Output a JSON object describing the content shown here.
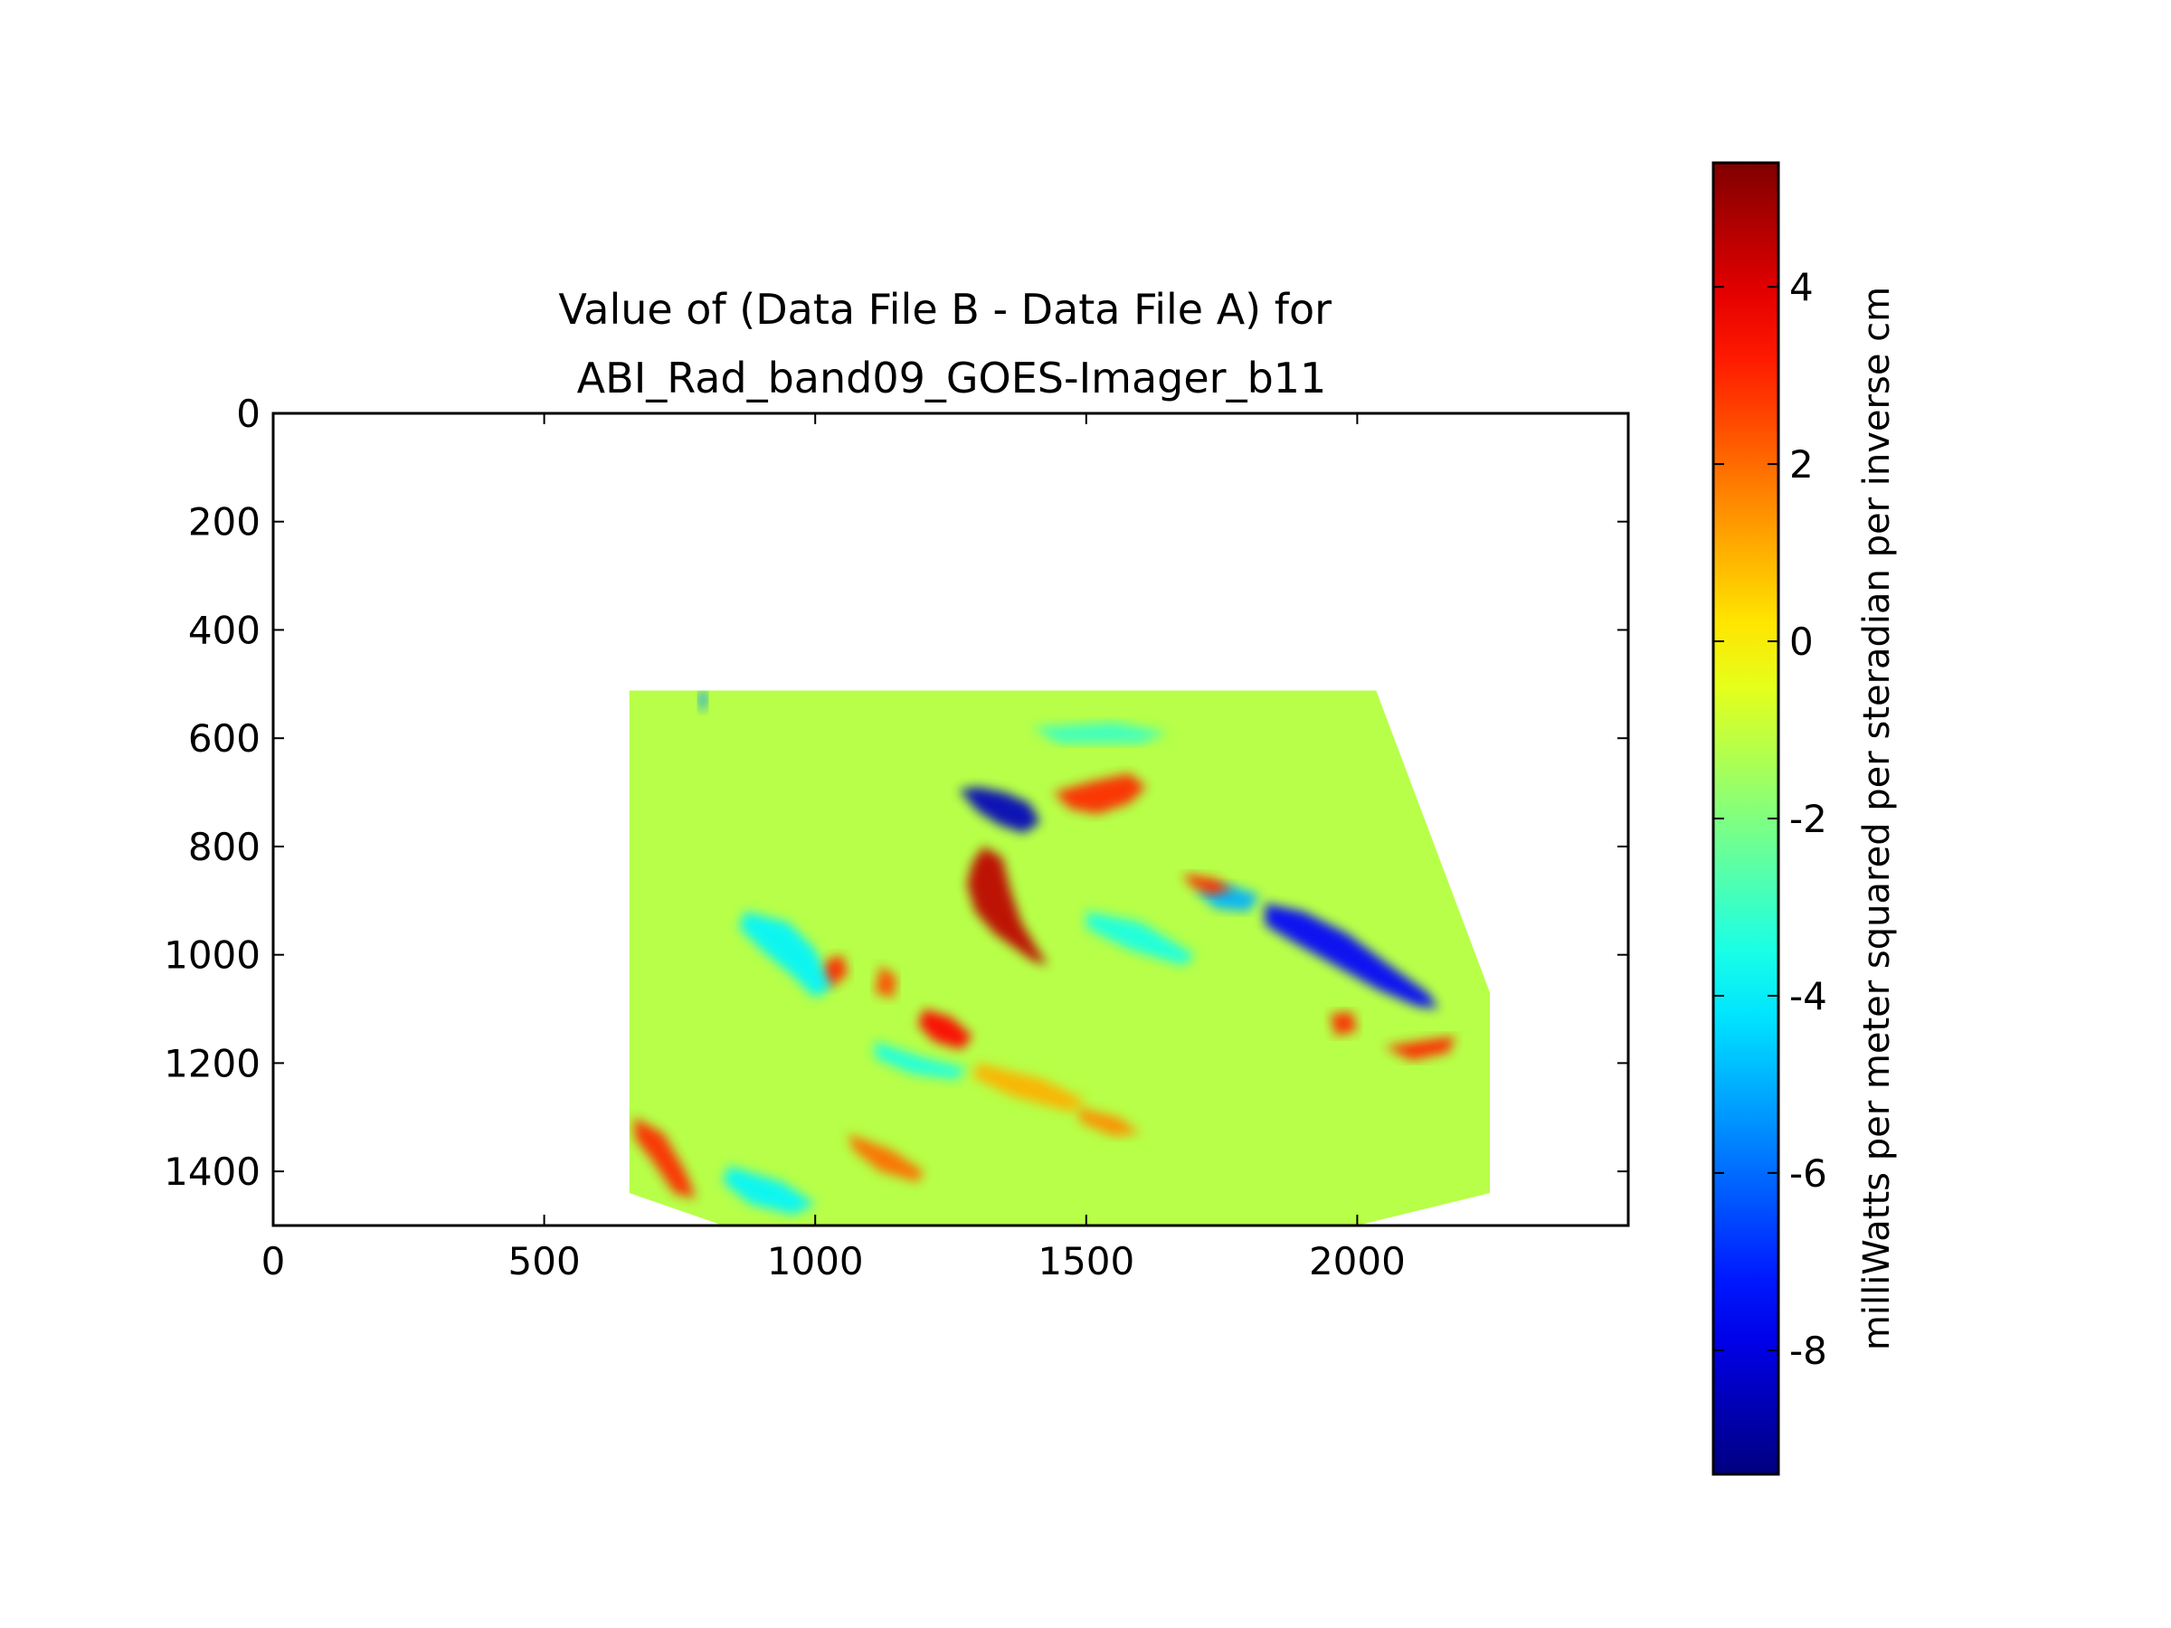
{
  "chart_data": {
    "type": "heatmap",
    "title": "Value of (Data File B - Data File A) for\nABI_Rad_band09_GOES-Imager_b11",
    "xlabel": "",
    "ylabel": "",
    "xlim": [
      0,
      2500
    ],
    "ylim": [
      1500,
      0
    ],
    "y_axis_inverted": true,
    "x_ticks": [
      0,
      500,
      1000,
      1500,
      2000
    ],
    "y_ticks": [
      0,
      200,
      400,
      600,
      800,
      1000,
      1200,
      1400
    ],
    "grid": false,
    "colormap": "jet",
    "colorbar": {
      "label": "milliWatts per meter squared per steradian per inverse cm",
      "range": [
        -9.4,
        5.4
      ],
      "ticks": [
        -8,
        -6,
        -4,
        -2,
        0,
        2,
        4
      ],
      "placement": "right"
    },
    "data_region": {
      "outline": [
        [
          657,
          512
        ],
        [
          2035,
          512
        ],
        [
          2245,
          1070
        ],
        [
          2245,
          1440
        ],
        [
          2000,
          1500
        ],
        [
          830,
          1500
        ],
        [
          657,
          1440
        ]
      ],
      "background_value": -1.2
    },
    "features": [
      {
        "kind": "positive",
        "value": 4.5,
        "points": [
          [
            1310,
            800
          ],
          [
            1290,
            830
          ],
          [
            1280,
            870
          ],
          [
            1295,
            920
          ],
          [
            1330,
            960
          ],
          [
            1400,
            1010
          ],
          [
            1430,
            1020
          ],
          [
            1410,
            990
          ],
          [
            1380,
            940
          ],
          [
            1360,
            880
          ],
          [
            1345,
            820
          ]
        ]
      },
      {
        "kind": "positive",
        "value": 3.0,
        "points": [
          [
            1440,
            700
          ],
          [
            1510,
            680
          ],
          [
            1580,
            665
          ],
          [
            1610,
            690
          ],
          [
            1580,
            720
          ],
          [
            1520,
            740
          ],
          [
            1470,
            730
          ]
        ]
      },
      {
        "kind": "negative",
        "value": -8.5,
        "points": [
          [
            1265,
            695
          ],
          [
            1300,
            690
          ],
          [
            1350,
            700
          ],
          [
            1395,
            720
          ],
          [
            1415,
            755
          ],
          [
            1385,
            775
          ],
          [
            1340,
            760
          ],
          [
            1300,
            735
          ]
        ]
      },
      {
        "kind": "negative",
        "value": -7.5,
        "points": [
          [
            1830,
            905
          ],
          [
            1900,
            920
          ],
          [
            1980,
            960
          ],
          [
            2060,
            1020
          ],
          [
            2130,
            1070
          ],
          [
            2150,
            1100
          ],
          [
            2110,
            1095
          ],
          [
            2040,
            1065
          ],
          [
            1960,
            1020
          ],
          [
            1880,
            975
          ],
          [
            1830,
            945
          ]
        ]
      },
      {
        "kind": "negative",
        "value": -5.0,
        "points": [
          [
            1700,
            880
          ],
          [
            1760,
            870
          ],
          [
            1820,
            890
          ],
          [
            1800,
            920
          ],
          [
            1740,
            915
          ]
        ]
      },
      {
        "kind": "positive",
        "value": 3.5,
        "points": [
          [
            1200,
            1100
          ],
          [
            1250,
            1115
          ],
          [
            1290,
            1150
          ],
          [
            1270,
            1175
          ],
          [
            1220,
            1160
          ],
          [
            1190,
            1130
          ]
        ]
      },
      {
        "kind": "positive",
        "value": 3.0,
        "points": [
          [
            1020,
            1010
          ],
          [
            1050,
            1000
          ],
          [
            1060,
            1035
          ],
          [
            1030,
            1060
          ],
          [
            1005,
            1045
          ]
        ]
      },
      {
        "kind": "positive",
        "value": 2.5,
        "points": [
          [
            1120,
            1020
          ],
          [
            1150,
            1040
          ],
          [
            1145,
            1080
          ],
          [
            1110,
            1070
          ]
        ]
      },
      {
        "kind": "positive",
        "value": 3.0,
        "points": [
          [
            1680,
            850
          ],
          [
            1740,
            860
          ],
          [
            1770,
            880
          ],
          [
            1730,
            890
          ],
          [
            1690,
            870
          ]
        ]
      },
      {
        "kind": "positive",
        "value": 3.0,
        "points": [
          [
            2050,
            1170
          ],
          [
            2110,
            1160
          ],
          [
            2180,
            1150
          ],
          [
            2170,
            1180
          ],
          [
            2100,
            1195
          ]
        ]
      },
      {
        "kind": "positive",
        "value": 3.0,
        "points": [
          [
            1950,
            1110
          ],
          [
            1990,
            1105
          ],
          [
            2000,
            1140
          ],
          [
            1960,
            1150
          ]
        ]
      },
      {
        "kind": "positive",
        "value": 3.0,
        "points": [
          [
            665,
            1300
          ],
          [
            720,
            1330
          ],
          [
            760,
            1400
          ],
          [
            780,
            1450
          ],
          [
            740,
            1440
          ],
          [
            700,
            1380
          ],
          [
            668,
            1340
          ]
        ]
      },
      {
        "kind": "positive",
        "value": 2.0,
        "points": [
          [
            1060,
            1330
          ],
          [
            1140,
            1360
          ],
          [
            1200,
            1400
          ],
          [
            1190,
            1420
          ],
          [
            1120,
            1400
          ],
          [
            1070,
            1360
          ]
        ]
      },
      {
        "kind": "positive",
        "value": 1.5,
        "points": [
          [
            1480,
            1280
          ],
          [
            1560,
            1300
          ],
          [
            1600,
            1330
          ],
          [
            1550,
            1335
          ],
          [
            1490,
            1310
          ]
        ]
      },
      {
        "kind": "negative",
        "value": -4.0,
        "points": [
          [
            870,
            920
          ],
          [
            950,
            940
          ],
          [
            1000,
            990
          ],
          [
            1030,
            1060
          ],
          [
            1000,
            1080
          ],
          [
            960,
            1040
          ],
          [
            900,
            990
          ],
          [
            860,
            950
          ]
        ]
      },
      {
        "kind": "negative",
        "value": -3.5,
        "points": [
          [
            1110,
            1160
          ],
          [
            1200,
            1190
          ],
          [
            1280,
            1210
          ],
          [
            1260,
            1230
          ],
          [
            1180,
            1220
          ],
          [
            1110,
            1190
          ]
        ]
      },
      {
        "kind": "negative",
        "value": -4.0,
        "points": [
          [
            840,
            1390
          ],
          [
            940,
            1420
          ],
          [
            1000,
            1460
          ],
          [
            960,
            1480
          ],
          [
            880,
            1460
          ],
          [
            830,
            1420
          ]
        ]
      },
      {
        "kind": "negative",
        "value": -5.5,
        "points": [
          [
            785,
            515
          ],
          [
            800,
            512
          ],
          [
            798,
            545
          ],
          [
            787,
            550
          ]
        ]
      },
      {
        "kind": "negative",
        "value": -3.0,
        "points": [
          [
            1400,
            580
          ],
          [
            1550,
            570
          ],
          [
            1650,
            590
          ],
          [
            1600,
            610
          ],
          [
            1450,
            610
          ]
        ]
      },
      {
        "kind": "negative",
        "value": -3.5,
        "points": [
          [
            1500,
            920
          ],
          [
            1600,
            940
          ],
          [
            1700,
            1000
          ],
          [
            1680,
            1020
          ],
          [
            1580,
            990
          ],
          [
            1500,
            950
          ]
        ]
      },
      {
        "kind": "positive",
        "value": 1.0,
        "points": [
          [
            1300,
            1200
          ],
          [
            1420,
            1230
          ],
          [
            1500,
            1270
          ],
          [
            1470,
            1290
          ],
          [
            1360,
            1260
          ],
          [
            1290,
            1225
          ]
        ]
      }
    ]
  }
}
